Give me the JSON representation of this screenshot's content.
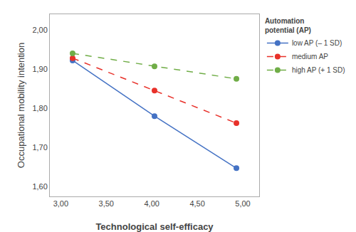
{
  "chart_data": {
    "type": "line",
    "xlabel": "Technological self-efficacy",
    "ylabel": "Occupational mobility intention",
    "legend_title": "Automation\npotential (AP)",
    "legend": "right",
    "grid": false,
    "x": [
      3.13,
      4.03,
      4.93
    ],
    "series": [
      {
        "name": "low AP (– 1 SD)",
        "color": "#4472C4",
        "marker": "circle",
        "line_style": "solid",
        "values": [
          1.922,
          1.78,
          1.647
        ]
      },
      {
        "name": "medium AP",
        "color": "#E8312A",
        "marker": "circle",
        "line_style": "dashed",
        "values": [
          1.928,
          1.845,
          1.762
        ]
      },
      {
        "name": "high AP (+ 1 SD)",
        "color": "#70AD47",
        "marker": "circle",
        "line_style": "dashed",
        "values": [
          1.94,
          1.907,
          1.875
        ]
      }
    ],
    "xlim": [
      2.88,
      5.18
    ],
    "ylim": [
      1.575,
      2.04
    ],
    "xticks": [
      {
        "value": 3.0,
        "label": "3,00"
      },
      {
        "value": 3.5,
        "label": "3,50"
      },
      {
        "value": 4.0,
        "label": "4,00"
      },
      {
        "value": 4.5,
        "label": "4,50"
      },
      {
        "value": 5.0,
        "label": "5,00"
      }
    ],
    "yticks": [
      {
        "value": 1.6,
        "label": "1,60"
      },
      {
        "value": 1.7,
        "label": "1,70"
      },
      {
        "value": 1.8,
        "label": "1,80"
      },
      {
        "value": 1.9,
        "label": "1,90"
      },
      {
        "value": 2.0,
        "label": "2,00"
      }
    ]
  }
}
